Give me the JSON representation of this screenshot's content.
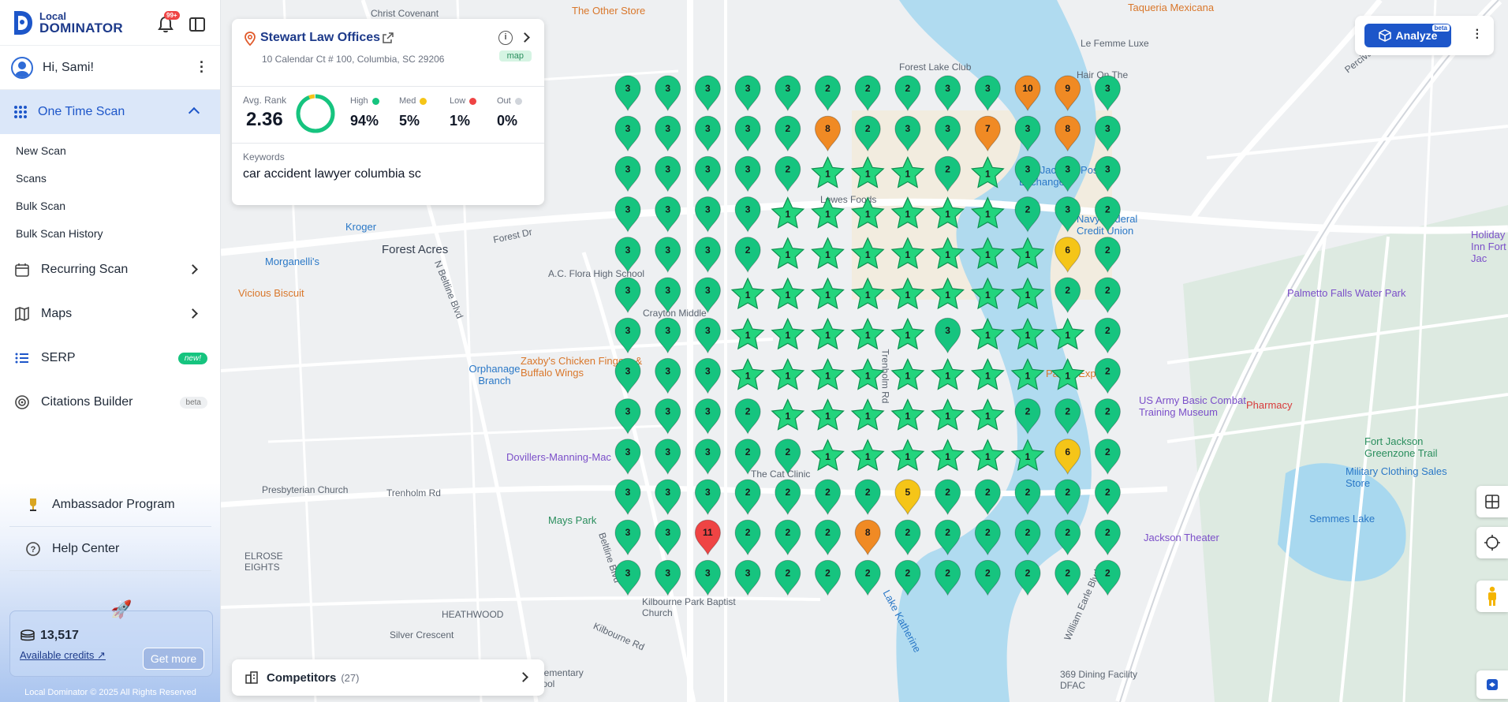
{
  "brand": {
    "small": "Local",
    "big": "DOMINATOR"
  },
  "notifications": {
    "badge": "99+"
  },
  "user": {
    "greeting": "Hi, Sami!"
  },
  "sidebar": {
    "active_section": "One Time Scan",
    "sub_items": [
      "New Scan",
      "Scans",
      "Bulk Scan",
      "Bulk Scan History"
    ],
    "items": [
      {
        "label": "Recurring Scan",
        "icon": "calendar-icon"
      },
      {
        "label": "Maps",
        "icon": "map-icon"
      },
      {
        "label": "SERP",
        "icon": "list-icon",
        "badge": "new!"
      },
      {
        "label": "Citations Builder",
        "icon": "citations-icon",
        "badge": "beta"
      }
    ],
    "bottom_items": [
      {
        "label": "Ambassador Program",
        "icon": "trophy-icon"
      },
      {
        "label": "Help Center",
        "icon": "help-icon"
      }
    ],
    "credits": {
      "value": "13,517",
      "link": "Available credits",
      "button": "Get more"
    },
    "copyright": "Local Dominator © 2025 All Rights Reserved"
  },
  "business": {
    "name": "Stewart Law Offices",
    "address": "10 Calendar Ct # 100, Columbia, SC 29206",
    "badge": "map",
    "avg_rank_label": "Avg. Rank",
    "avg_rank": "2.36",
    "stats": [
      {
        "label": "High",
        "value": "94%",
        "color": "#16c47f"
      },
      {
        "label": "Med",
        "value": "5%",
        "color": "#f5c518"
      },
      {
        "label": "Low",
        "value": "1%",
        "color": "#ef4444"
      },
      {
        "label": "Out",
        "value": "0%",
        "color": "#d1d5db"
      }
    ],
    "keywords_label": "Keywords",
    "keyword": "car accident lawyer columbia sc"
  },
  "competitors": {
    "label": "Competitors",
    "count": "(27)"
  },
  "toolbar": {
    "analyze": "Analyze",
    "beta": "beta"
  },
  "colors": {
    "green": "#16c47f",
    "orange": "#f08a24",
    "yellow": "#f5c518",
    "red": "#ef4444",
    "accent": "#1d56c9"
  },
  "rank_grid": [
    [
      "3",
      "3",
      "3",
      "3",
      "3",
      "2",
      "2",
      "2",
      "3",
      "3",
      "10",
      "9",
      "3"
    ],
    [
      "3",
      "3",
      "3",
      "3",
      "2",
      "8",
      "2",
      "3",
      "3",
      "7",
      "3",
      "8",
      "3"
    ],
    [
      "3",
      "3",
      "3",
      "3",
      "2",
      "1",
      "1",
      "1",
      "2",
      "1",
      "3",
      "3",
      "3"
    ],
    [
      "3",
      "3",
      "3",
      "3",
      "1",
      "1",
      "1",
      "1",
      "1",
      "1",
      "2",
      "3",
      "2"
    ],
    [
      "3",
      "3",
      "3",
      "2",
      "1",
      "1",
      "1",
      "1",
      "1",
      "1",
      "1",
      "6",
      "2"
    ],
    [
      "3",
      "3",
      "3",
      "1",
      "1",
      "1",
      "1",
      "1",
      "1",
      "1",
      "1",
      "2",
      "2"
    ],
    [
      "3",
      "3",
      "3",
      "1",
      "1",
      "1",
      "1",
      "1",
      "3",
      "1",
      "1",
      "1",
      "2"
    ],
    [
      "3",
      "3",
      "3",
      "1",
      "1",
      "1",
      "1",
      "1",
      "1",
      "1",
      "1",
      "1",
      "2"
    ],
    [
      "3",
      "3",
      "3",
      "2",
      "1",
      "1",
      "1",
      "1",
      "1",
      "1",
      "2",
      "2",
      "2"
    ],
    [
      "3",
      "3",
      "3",
      "2",
      "2",
      "1",
      "1",
      "1",
      "1",
      "1",
      "1",
      "6",
      "2"
    ],
    [
      "3",
      "3",
      "3",
      "2",
      "2",
      "2",
      "2",
      "5",
      "2",
      "2",
      "2",
      "2",
      "2"
    ],
    [
      "3",
      "3",
      "11",
      "2",
      "2",
      "2",
      "8",
      "2",
      "2",
      "2",
      "2",
      "2",
      "2"
    ],
    [
      "3",
      "3",
      "3",
      "3",
      "2",
      "2",
      "2",
      "2",
      "2",
      "2",
      "2",
      "2",
      "2"
    ]
  ],
  "map_labels": [
    {
      "text": "Christ Covenant",
      "cls": ""
    },
    {
      "text": "The Other Store",
      "cls": "orange"
    },
    {
      "text": "Taqueria Mexicana",
      "cls": "orange"
    },
    {
      "text": "Le Femme Luxe",
      "cls": ""
    },
    {
      "text": "Forest Lake Club",
      "cls": ""
    },
    {
      "text": "Hair On The",
      "cls": ""
    },
    {
      "text": "Fort Jackson Post Exchange",
      "cls": "blue"
    },
    {
      "text": "Lowes Foods",
      "cls": ""
    },
    {
      "text": "Navy Federal Credit Union",
      "cls": "blue"
    },
    {
      "text": "Kroger",
      "cls": "blue"
    },
    {
      "text": "Forest Acres",
      "cls": "big"
    },
    {
      "text": "Morganelli's",
      "cls": "blue"
    },
    {
      "text": "A.C. Flora High School",
      "cls": ""
    },
    {
      "text": "Vicious Biscuit",
      "cls": "orange"
    },
    {
      "text": "Crayton Middle",
      "cls": ""
    },
    {
      "text": "Palmetto Falls Water Park",
      "cls": "purple"
    },
    {
      "text": "Holiday Inn Fort Jac",
      "cls": "purple"
    },
    {
      "text": "Zaxby's Chicken Fingers & Buffalo Wings",
      "cls": "orange"
    },
    {
      "text": "Orphanage Branch",
      "cls": "blue"
    },
    {
      "text": "Panda Express",
      "cls": "orange"
    },
    {
      "text": "US Army Basic Combat Training Museum",
      "cls": "purple"
    },
    {
      "text": "Pharmacy",
      "cls": "red"
    },
    {
      "text": "Dovillers-Manning-Mac",
      "cls": "purple"
    },
    {
      "text": "Fort Jackson Greenzone Trail",
      "cls": "green"
    },
    {
      "text": "The Cat Clinic",
      "cls": ""
    },
    {
      "text": "Presbyterian Church",
      "cls": ""
    },
    {
      "text": "Military Clothing Sales Store",
      "cls": "blue"
    },
    {
      "text": "Mays Park",
      "cls": "green"
    },
    {
      "text": "Trenholm Rd",
      "cls": ""
    },
    {
      "text": "Jackson Theater",
      "cls": "purple"
    },
    {
      "text": "Semmes Lake",
      "cls": "blue"
    },
    {
      "text": "HEATHWOOD",
      "cls": ""
    },
    {
      "text": "Silver Crescent",
      "cls": ""
    },
    {
      "text": "Brennen Elementary School",
      "cls": ""
    },
    {
      "text": "Kilbourne Park Baptist Church",
      "cls": ""
    },
    {
      "text": "369 Dining Facility DFAC",
      "cls": ""
    },
    {
      "text": "Lake Katherine",
      "cls": "blue"
    },
    {
      "text": "Forest Dr",
      "cls": ""
    },
    {
      "text": "Percival Rd",
      "cls": ""
    },
    {
      "text": "Beltline Blvd",
      "cls": ""
    },
    {
      "text": "Trenholm Rd",
      "cls": ""
    },
    {
      "text": "William Earle Blvd",
      "cls": ""
    },
    {
      "text": "ELROSE EIGHTS",
      "cls": ""
    },
    {
      "text": "Kilbourne Rd",
      "cls": ""
    },
    {
      "text": "N Beltline Blvd",
      "cls": ""
    }
  ]
}
